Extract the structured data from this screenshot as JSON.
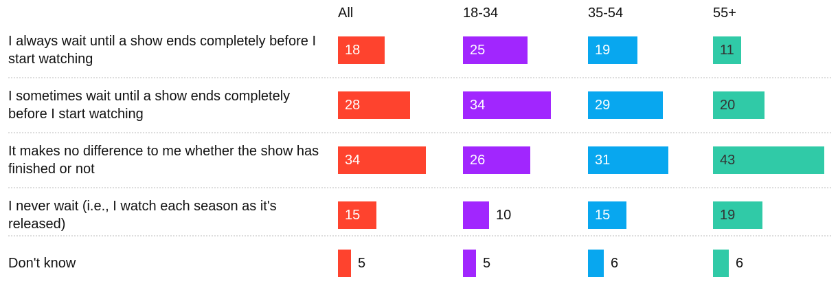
{
  "chart_data": {
    "type": "bar",
    "columns": [
      "All",
      "18-34",
      "35-54",
      "55+"
    ],
    "colors": [
      "#fe432e",
      "#a126fe",
      "#08a7ef",
      "#30caa7"
    ],
    "label_colors": [
      "#ffffff",
      "#ffffff",
      "#ffffff",
      "#333333"
    ],
    "rows": [
      {
        "label": "I always wait until a show ends completely before I start watching",
        "values": [
          18,
          25,
          19,
          11
        ]
      },
      {
        "label": "I sometimes wait until a show ends completely before I start watching",
        "values": [
          28,
          34,
          29,
          20
        ]
      },
      {
        "label": "It makes no difference to me whether the show has finished or not",
        "values": [
          34,
          26,
          31,
          43
        ]
      },
      {
        "label": "I never wait (i.e., I watch each season as it's released)",
        "values": [
          15,
          10,
          15,
          19
        ]
      },
      {
        "label": "Don't know",
        "values": [
          5,
          5,
          6,
          6
        ]
      }
    ]
  }
}
